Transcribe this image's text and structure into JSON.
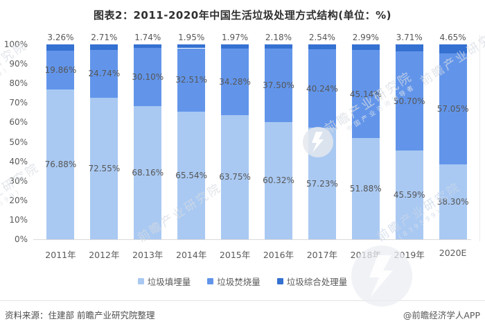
{
  "title": "图表2：2011-2020年中国生活垃圾处理方式结构(单位：%)",
  "chart_data": {
    "type": "bar",
    "stacked": true,
    "orientation": "vertical",
    "title": "图表2：2011-2020年中国生活垃圾处理方式结构(单位：%)",
    "unit": "%",
    "categories": [
      "2011年",
      "2012年",
      "2013年",
      "2014年",
      "2015年",
      "2016年",
      "2017年",
      "2018年",
      "2019年",
      "2020E"
    ],
    "series": [
      {
        "name": "垃圾填埋量",
        "color": "#a9c9f2",
        "values": [
          76.88,
          72.55,
          68.16,
          65.54,
          63.75,
          60.32,
          57.23,
          51.88,
          45.59,
          38.3
        ]
      },
      {
        "name": "垃圾焚烧量",
        "color": "#6295ea",
        "values": [
          19.86,
          24.74,
          30.1,
          32.51,
          34.28,
          37.5,
          40.24,
          45.14,
          50.7,
          57.05
        ]
      },
      {
        "name": "垃圾综合处理量",
        "color": "#3471d1",
        "values": [
          3.26,
          2.71,
          1.74,
          1.95,
          1.97,
          2.18,
          2.54,
          2.99,
          3.71,
          4.65
        ]
      }
    ],
    "y_axis": {
      "min": 0,
      "max": 100,
      "tick_step": 10,
      "tick_labels": [
        "0%",
        "10%",
        "20%",
        "30%",
        "40%",
        "50%",
        "60%",
        "70%",
        "80%",
        "90%",
        "100%"
      ]
    },
    "grid": false,
    "legend_position": "bottom",
    "value_label_format": "0.00%"
  },
  "footer": {
    "source": "资料来源：住建部 前瞻产业研究院整理",
    "brand": "@前瞻经济学人APP"
  },
  "watermark": {
    "brand": "前瞻产业研究院",
    "tagline": "中国产业咨询领导者",
    "code": "(839599)"
  }
}
